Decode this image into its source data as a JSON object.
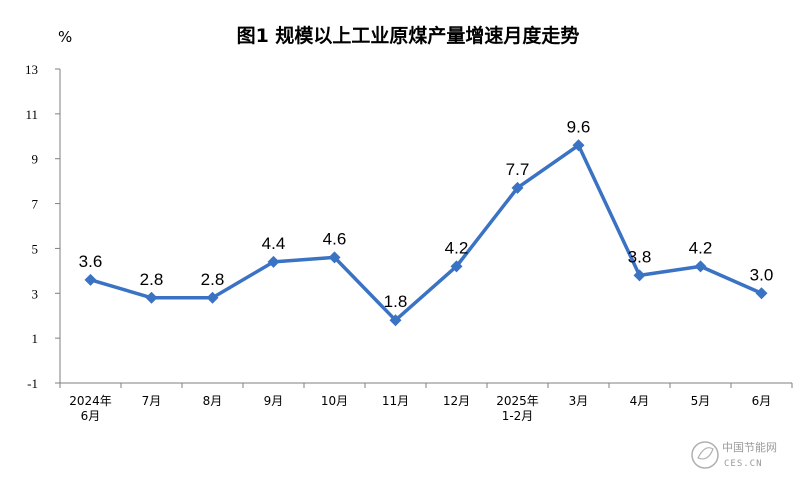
{
  "chart_data": {
    "type": "line",
    "title": "图1  规模以上工业原煤产量增速月度走势",
    "ylabel": "%",
    "ylim": [
      -1,
      13
    ],
    "yticks": [
      "13",
      "11",
      "9",
      "7",
      "5",
      "3",
      "1",
      "-1"
    ],
    "ytick_values": [
      13,
      11,
      9,
      7,
      5,
      3,
      1,
      -1
    ],
    "grid": false,
    "legend": "none",
    "categories": [
      [
        "2024年",
        "6月"
      ],
      [
        "7月"
      ],
      [
        "8月"
      ],
      [
        "9月"
      ],
      [
        "10月"
      ],
      [
        "11月"
      ],
      [
        "12月"
      ],
      [
        "2025年",
        "1-2月"
      ],
      [
        "3月"
      ],
      [
        "4月"
      ],
      [
        "5月"
      ],
      [
        "6月"
      ]
    ],
    "values": [
      3.6,
      2.8,
      2.8,
      4.4,
      4.6,
      1.8,
      4.2,
      7.7,
      9.6,
      3.8,
      4.2,
      3.0
    ],
    "data_labels": [
      "3.6",
      "2.8",
      "2.8",
      "4.4",
      "4.6",
      "1.8",
      "4.2",
      "7.7",
      "9.6",
      "3.8",
      "4.2",
      "3.0"
    ],
    "color": "#3a72c4"
  },
  "watermark": {
    "text": "中国节能网",
    "sub": "CES.CN"
  }
}
